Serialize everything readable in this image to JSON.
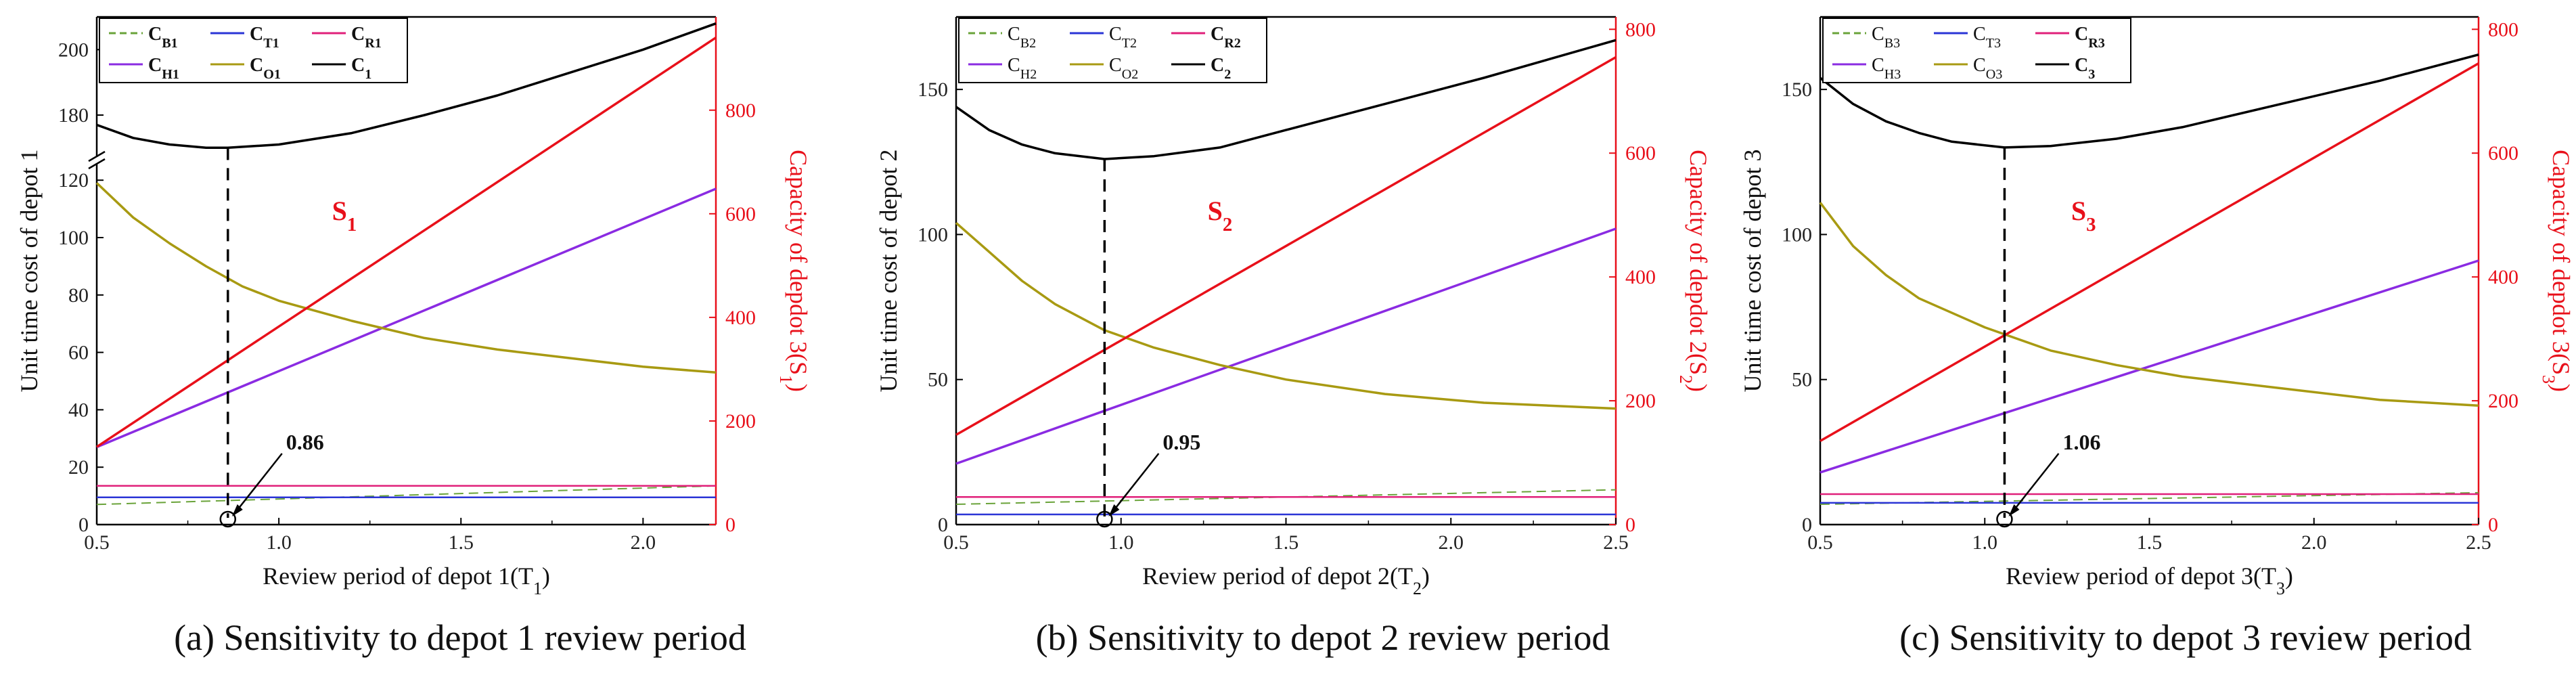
{
  "colors": {
    "C_B": "#6aa33a",
    "C_T": "#2b35d6",
    "C_R": "#e0207a",
    "C_H": "#8a2be2",
    "C_O": "#a89a12",
    "C_total": "#000000",
    "S": "#e8101a",
    "axis": "#000000"
  },
  "chart_data": [
    {
      "id": "a",
      "type": "line",
      "caption": "(a) Sensitivity to depot 1 review period",
      "xlabel": {
        "main": "Review period of  depot 1(T",
        "sub": "1",
        "end": ")"
      },
      "ylabel": "Unit time cost of depot 1",
      "y2label": {
        "main": "Capacity of depdot 3(S",
        "sub": "1",
        "end": ")"
      },
      "xlim": [
        0.5,
        2.2
      ],
      "xticks": [
        "0.5",
        "1.0",
        "1.5",
        "2.0"
      ],
      "ylim_lower": [
        0,
        125
      ],
      "ylim_upper": [
        168,
        210
      ],
      "yticks_lower": [
        "0",
        "20",
        "40",
        "60",
        "80",
        "100",
        "120"
      ],
      "yticks_upper": [
        "180",
        "200"
      ],
      "y2lim": [
        0,
        980
      ],
      "y2ticks": [
        "0",
        "200",
        "400",
        "600",
        "800"
      ],
      "optimal_x": 0.86,
      "optimal_label": "0.86",
      "s_label": {
        "main": "S",
        "sub": "1"
      },
      "legend": [
        {
          "key": "C_B",
          "main": "C",
          "sub": "B1",
          "dash": true,
          "bold": true
        },
        {
          "key": "C_T",
          "main": "C",
          "sub": "T1",
          "bold": true
        },
        {
          "key": "C_R",
          "main": "C",
          "sub": "R1",
          "bold": true
        },
        {
          "key": "C_H",
          "main": "C",
          "sub": "H1",
          "bold": true
        },
        {
          "key": "C_O",
          "main": "C",
          "sub": "O1",
          "bold": true
        },
        {
          "key": "C_total",
          "main": "C",
          "sub": "1",
          "bold": true
        }
      ],
      "series": [
        {
          "name": "C_B1",
          "x": [
            0.5,
            2.2
          ],
          "y": [
            7,
            13.5
          ]
        },
        {
          "name": "C_T1",
          "x": [
            0.5,
            2.2
          ],
          "y": [
            9.5,
            9.5
          ]
        },
        {
          "name": "C_R1",
          "x": [
            0.5,
            2.2
          ],
          "y": [
            13.5,
            13.5
          ]
        },
        {
          "name": "C_H1",
          "x": [
            0.5,
            2.2
          ],
          "y": [
            27,
            117
          ]
        },
        {
          "name": "C_O1",
          "x": [
            0.5,
            0.6,
            0.7,
            0.8,
            0.9,
            1.0,
            1.2,
            1.4,
            1.6,
            1.8,
            2.0,
            2.2
          ],
          "y": [
            119,
            107,
            98,
            90,
            83,
            78,
            71,
            65,
            61,
            58,
            55,
            53
          ]
        },
        {
          "name": "C_1",
          "x": [
            0.5,
            0.6,
            0.7,
            0.8,
            0.86,
            0.9,
            1.0,
            1.2,
            1.4,
            1.6,
            1.8,
            2.0,
            2.2
          ],
          "y": [
            177,
            173,
            171,
            170,
            170,
            170.3,
            171,
            174.5,
            180,
            186,
            193,
            200,
            208
          ]
        },
        {
          "name": "S_1",
          "axis": "y2",
          "x": [
            0.5,
            2.2
          ],
          "y": [
            150,
            940
          ]
        }
      ]
    },
    {
      "id": "b",
      "type": "line",
      "caption": "(b) Sensitivity to depot 2 review period",
      "xlabel": {
        "main": "Review period of  depot 2(T",
        "sub": "2",
        "end": ")"
      },
      "ylabel": "Unit time cost of depot 2",
      "y2label": {
        "main": "Capacity of depdot 2(S",
        "sub": "2",
        "end": ")"
      },
      "xlim": [
        0.5,
        2.5
      ],
      "xticks": [
        "0.5",
        "1.0",
        "1.5",
        "2.0",
        "2.5"
      ],
      "ylim": [
        0,
        175
      ],
      "yticks": [
        "0",
        "50",
        "100",
        "150"
      ],
      "y2lim": [
        0,
        820
      ],
      "y2ticks": [
        "0",
        "200",
        "400",
        "600",
        "800"
      ],
      "optimal_x": 0.95,
      "optimal_label": "0.95",
      "s_label": {
        "main": "S",
        "sub": "2"
      },
      "legend": [
        {
          "key": "C_B",
          "main": "C",
          "sub": "B2",
          "dash": true,
          "bold": false
        },
        {
          "key": "C_T",
          "main": "C",
          "sub": "T2",
          "bold": false
        },
        {
          "key": "C_R",
          "main": "C",
          "sub": "R2",
          "bold": true
        },
        {
          "key": "C_H",
          "main": "C",
          "sub": "H2",
          "bold": false
        },
        {
          "key": "C_O",
          "main": "C",
          "sub": "O2",
          "bold": false
        },
        {
          "key": "C_total",
          "main": "C",
          "sub": "2",
          "bold": true
        }
      ],
      "series": [
        {
          "name": "C_B2",
          "x": [
            0.5,
            2.5
          ],
          "y": [
            7,
            12
          ]
        },
        {
          "name": "C_T2",
          "x": [
            0.5,
            2.5
          ],
          "y": [
            3.5,
            3.5
          ]
        },
        {
          "name": "C_R2",
          "x": [
            0.5,
            2.5
          ],
          "y": [
            9.5,
            9.5
          ]
        },
        {
          "name": "C_H2",
          "x": [
            0.5,
            2.5
          ],
          "y": [
            21,
            102
          ]
        },
        {
          "name": "C_O2",
          "x": [
            0.5,
            0.6,
            0.7,
            0.8,
            0.95,
            1.1,
            1.3,
            1.5,
            1.8,
            2.1,
            2.5
          ],
          "y": [
            104,
            94,
            84,
            76,
            67,
            61,
            55,
            50,
            45,
            42,
            40
          ]
        },
        {
          "name": "C_2",
          "x": [
            0.5,
            0.6,
            0.7,
            0.8,
            0.95,
            1.1,
            1.3,
            1.5,
            1.8,
            2.1,
            2.5
          ],
          "y": [
            144,
            136,
            131,
            128,
            126,
            127,
            130,
            136,
            145,
            154,
            167
          ]
        },
        {
          "name": "S_2",
          "axis": "y2",
          "x": [
            0.5,
            2.5
          ],
          "y": [
            145,
            755
          ]
        }
      ]
    },
    {
      "id": "c",
      "type": "line",
      "caption": "(c) Sensitivity to depot 3 review period",
      "xlabel": {
        "main": "Review period of  depot 3(T",
        "sub": "3",
        "end": ")"
      },
      "ylabel": "Unit time cost of depot 3",
      "y2label": {
        "main": "Capacity of depdot 3(S",
        "sub": "3",
        "end": ")"
      },
      "xlim": [
        0.5,
        2.5
      ],
      "xticks": [
        "0.5",
        "1.0",
        "1.5",
        "2.0",
        "2.5"
      ],
      "ylim": [
        0,
        175
      ],
      "yticks": [
        "0",
        "50",
        "100",
        "150"
      ],
      "y2lim": [
        0,
        820
      ],
      "y2ticks": [
        "0",
        "200",
        "400",
        "600",
        "800"
      ],
      "optimal_x": 1.06,
      "optimal_label": "1.06",
      "s_label": {
        "main": "S",
        "sub": "3"
      },
      "legend": [
        {
          "key": "C_B",
          "main": "C",
          "sub": "B3",
          "dash": true,
          "bold": false
        },
        {
          "key": "C_T",
          "main": "C",
          "sub": "T3",
          "bold": false
        },
        {
          "key": "C_R",
          "main": "C",
          "sub": "R3",
          "bold": true
        },
        {
          "key": "C_H",
          "main": "C",
          "sub": "H3",
          "bold": false
        },
        {
          "key": "C_O",
          "main": "C",
          "sub": "O3",
          "bold": false
        },
        {
          "key": "C_total",
          "main": "C",
          "sub": "3",
          "bold": true
        }
      ],
      "series": [
        {
          "name": "C_B3",
          "x": [
            0.5,
            2.5
          ],
          "y": [
            7,
            11
          ]
        },
        {
          "name": "C_T3",
          "x": [
            0.5,
            2.5
          ],
          "y": [
            7.5,
            7.5
          ]
        },
        {
          "name": "C_R3",
          "x": [
            0.5,
            2.5
          ],
          "y": [
            10.5,
            10.5
          ]
        },
        {
          "name": "C_H3",
          "x": [
            0.5,
            2.5
          ],
          "y": [
            18,
            91
          ]
        },
        {
          "name": "C_O3",
          "x": [
            0.5,
            0.6,
            0.7,
            0.8,
            1.0,
            1.2,
            1.4,
            1.6,
            1.9,
            2.2,
            2.5
          ],
          "y": [
            111,
            96,
            86,
            78,
            68,
            60,
            55,
            51,
            47,
            43,
            41
          ]
        },
        {
          "name": "C_3",
          "x": [
            0.5,
            0.6,
            0.7,
            0.8,
            0.9,
            1.06,
            1.2,
            1.4,
            1.6,
            1.9,
            2.2,
            2.5
          ],
          "y": [
            154,
            145,
            139,
            135,
            132,
            130,
            130.5,
            133,
            137,
            145,
            153,
            162
          ]
        },
        {
          "name": "S_3",
          "axis": "y2",
          "x": [
            0.5,
            2.5
          ],
          "y": [
            135,
            745
          ]
        }
      ]
    }
  ]
}
